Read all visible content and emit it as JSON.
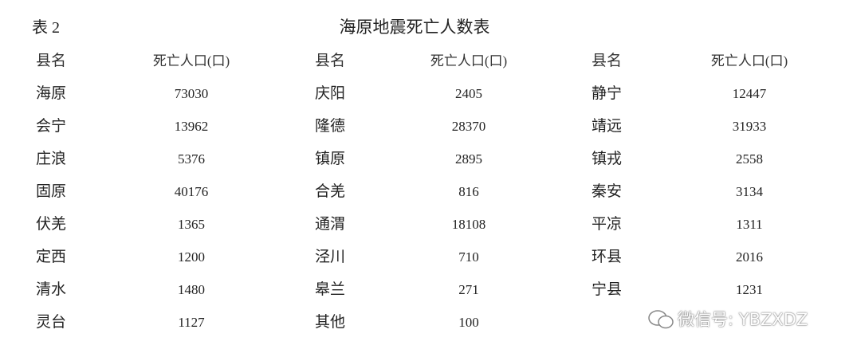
{
  "header": {
    "label": "表 2",
    "title": "海原地震死亡人数表"
  },
  "table": {
    "columns": [
      "县名",
      "死亡人口(口)",
      "县名",
      "死亡人口(口)",
      "县名",
      "死亡人口(口)"
    ],
    "rows": [
      [
        "海原",
        73030,
        "庆阳",
        2405,
        "静宁",
        12447
      ],
      [
        "会宁",
        13962,
        "隆德",
        28370,
        "靖远",
        31933
      ],
      [
        "庄浪",
        5376,
        "镇原",
        2895,
        "镇戎",
        2558
      ],
      [
        "固原",
        40176,
        "合羌",
        816,
        "秦安",
        3134
      ],
      [
        "伏羌",
        1365,
        "通渭",
        18108,
        "平凉",
        1311
      ],
      [
        "定西",
        1200,
        "泾川",
        710,
        "环县",
        2016
      ],
      [
        "清水",
        1480,
        "皋兰",
        271,
        "宁县",
        1231
      ],
      [
        "灵台",
        1127,
        "其他",
        100
      ]
    ]
  },
  "watermark": "微信号: YBZXDZ"
}
